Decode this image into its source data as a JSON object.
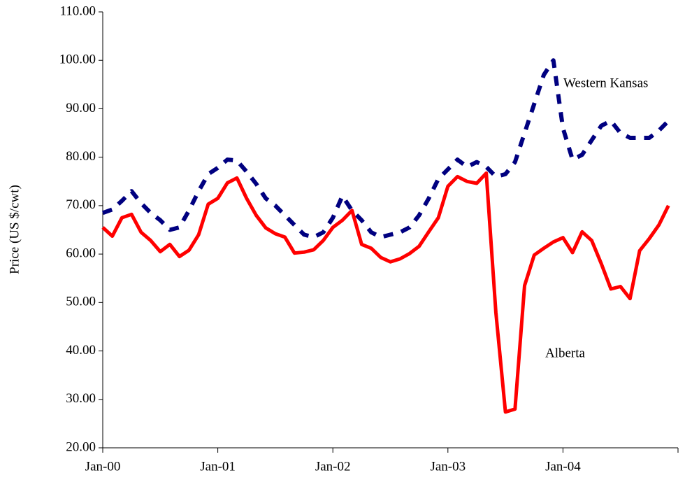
{
  "chart_data": {
    "type": "line",
    "y_label": "Price (US $/cwt)",
    "categories": [
      "Jan-00",
      null,
      null,
      null,
      null,
      null,
      null,
      null,
      null,
      null,
      null,
      null,
      "Jan-01",
      null,
      null,
      null,
      null,
      null,
      null,
      null,
      null,
      null,
      null,
      null,
      "Jan-02",
      null,
      null,
      null,
      null,
      null,
      null,
      null,
      null,
      null,
      null,
      null,
      "Jan-03",
      null,
      null,
      null,
      null,
      null,
      null,
      null,
      null,
      null,
      null,
      null,
      "Jan-04",
      null,
      null,
      null,
      null,
      null,
      null,
      null,
      null,
      null,
      null,
      null
    ],
    "series": [
      {
        "name": "Western Kansas",
        "color": "#000080",
        "dashed": true,
        "values": [
          68.5,
          69.2,
          71,
          73,
          70.5,
          68.5,
          67,
          65,
          65.5,
          69,
          73,
          76.5,
          77.8,
          79.5,
          79.3,
          77,
          74.5,
          71.5,
          70,
          68,
          66,
          64,
          63.5,
          64.5,
          67.5,
          72,
          69,
          67,
          64.5,
          63.5,
          64,
          64.5,
          65.5,
          68,
          71.5,
          75.5,
          77.5,
          79.5,
          78,
          79,
          78,
          76,
          76.5,
          79,
          85,
          91,
          97,
          100,
          86,
          79.5,
          80.5,
          83.5,
          86.5,
          87.5,
          85,
          84,
          84,
          84,
          85.5,
          87.5
        ]
      },
      {
        "name": "Alberta",
        "color": "#ff0000",
        "dashed": false,
        "values": [
          65.5,
          63.7,
          67.5,
          68.2,
          64.5,
          62.8,
          60.5,
          62,
          59.5,
          60.8,
          64,
          70.3,
          71.5,
          74.7,
          75.7,
          71.5,
          68,
          65.4,
          64.2,
          63.5,
          60.2,
          60.4,
          60.9,
          62.8,
          65.5,
          67,
          69,
          62,
          61.2,
          59.3,
          58.4,
          59,
          60.1,
          61.6,
          64.6,
          67.5,
          74,
          76,
          75,
          74.6,
          76.7,
          48,
          27.4,
          28,
          53.5,
          59.8,
          61.2,
          62.5,
          63.4,
          60.3,
          64.6,
          62.8,
          58,
          52.8,
          53.3,
          50.8,
          60.7,
          63.2,
          66,
          70
        ]
      }
    ],
    "ylim": [
      20,
      110
    ],
    "yticks": [
      {
        "value": 20,
        "label": "20.00"
      },
      {
        "value": 30,
        "label": "30.00"
      },
      {
        "value": 40,
        "label": "40.00"
      },
      {
        "value": 50,
        "label": "50.00"
      },
      {
        "value": 60,
        "label": "60.00"
      },
      {
        "value": 70,
        "label": "70.00"
      },
      {
        "value": 80,
        "label": "80.00"
      },
      {
        "value": 90,
        "label": "90.00"
      },
      {
        "value": 100,
        "label": "100.00"
      },
      {
        "value": 110,
        "label": "110.00"
      }
    ],
    "grid": false
  }
}
